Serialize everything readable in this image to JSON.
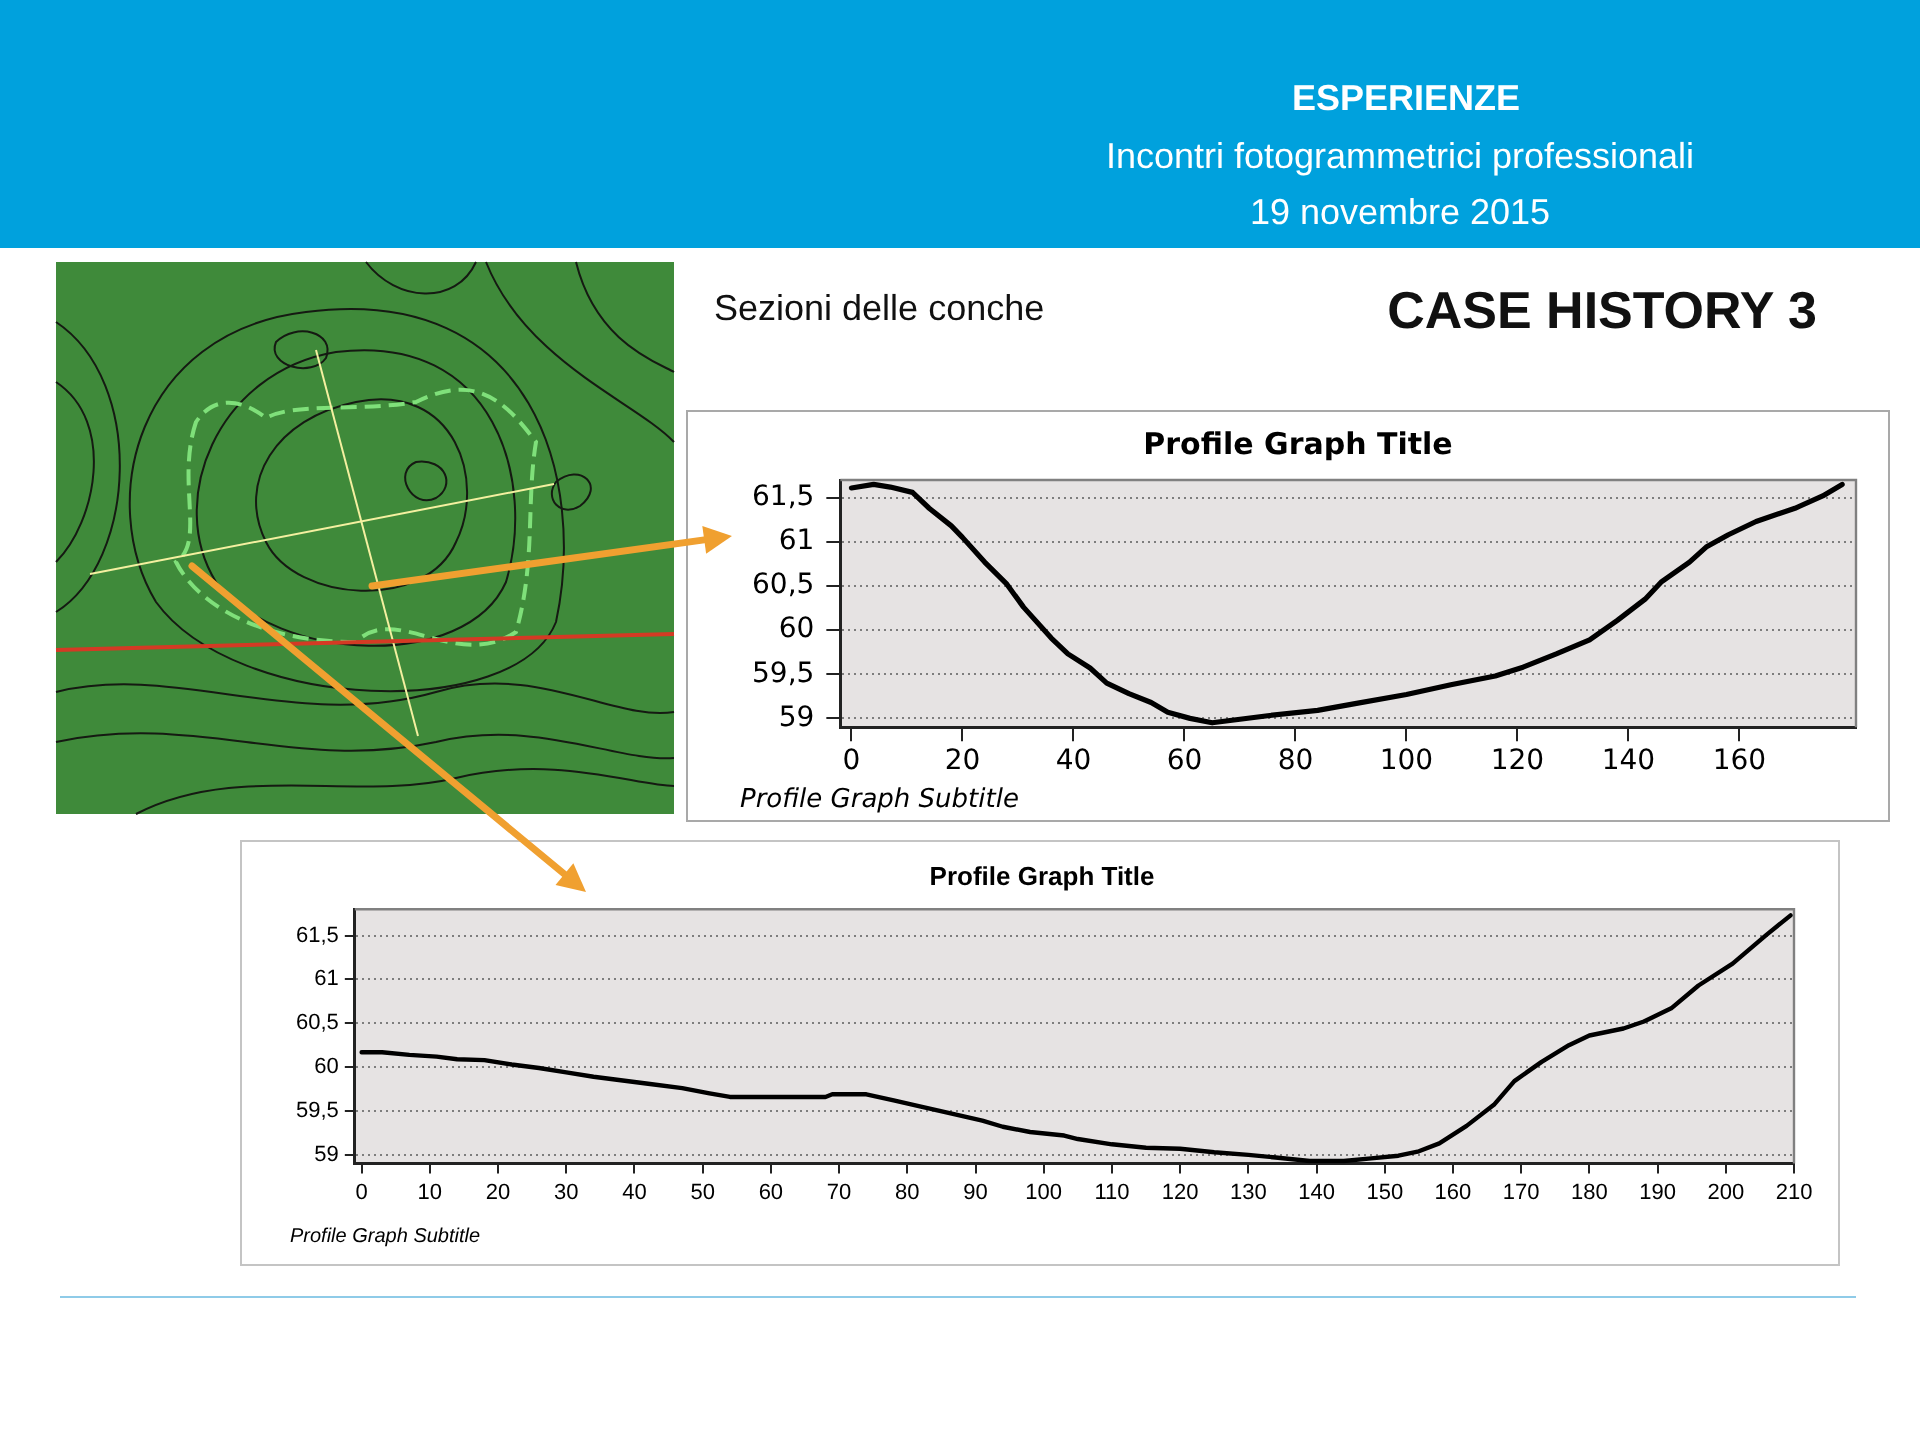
{
  "chart_data": [
    {
      "type": "line",
      "title": "Profile Graph Title",
      "subtitle": "Profile Graph Subtitle",
      "annotations": [
        "ESPERIENZE",
        "Incontri fotogrammetrici professionali",
        "19 novembre 2015",
        "Sezioni delle conche",
        "CASE HISTORY 3"
      ],
      "x": [
        0,
        4,
        7,
        11,
        14,
        18,
        20,
        24,
        28,
        31,
        36,
        39,
        43,
        46,
        50,
        54,
        57,
        61,
        65,
        70,
        75,
        84,
        91,
        100,
        108,
        116,
        121,
        127,
        133,
        138,
        143,
        146,
        151,
        154,
        158,
        163,
        170,
        175,
        178.5
      ],
      "values": [
        61.61,
        61.65,
        61.62,
        61.56,
        61.38,
        61.18,
        61.05,
        60.77,
        60.52,
        60.26,
        59.91,
        59.73,
        59.57,
        59.4,
        59.28,
        59.18,
        59.07,
        59.0,
        58.95,
        58.99,
        59.03,
        59.09,
        59.17,
        59.27,
        59.38,
        59.48,
        59.58,
        59.73,
        59.89,
        60.11,
        60.35,
        60.55,
        60.77,
        60.94,
        61.08,
        61.23,
        61.38,
        61.52,
        61.65
      ],
      "color": "#000000",
      "xlim": [
        -2,
        181
      ],
      "xticks": [
        0,
        20,
        40,
        60,
        80,
        100,
        120,
        140,
        160
      ],
      "ylim": [
        58.9,
        61.7
      ],
      "yticks": [
        59,
        {
          "value": 59.5,
          "label": "59,5"
        },
        60,
        {
          "value": 60.5,
          "label": "60,5"
        },
        61,
        {
          "value": 61.5,
          "label": "61,5"
        }
      ],
      "grid": "y"
    },
    {
      "type": "line",
      "title": "Profile Graph Title",
      "subtitle": "Profile Graph Subtitle",
      "x": [
        0,
        3,
        7,
        11,
        14,
        18,
        22,
        26,
        30,
        34,
        38,
        42,
        47,
        51,
        54,
        60,
        68,
        69,
        74,
        78,
        82,
        87,
        91,
        94,
        98,
        103,
        105,
        110,
        115,
        120,
        125,
        130,
        134,
        139,
        144,
        148,
        152,
        155,
        158,
        162,
        166,
        169,
        173,
        177,
        180,
        185,
        188,
        192,
        196,
        201,
        206,
        209.5
      ],
      "values": [
        60.17,
        60.17,
        60.14,
        60.12,
        60.09,
        60.08,
        60.03,
        59.99,
        59.94,
        59.89,
        59.85,
        59.81,
        59.76,
        59.7,
        59.66,
        59.66,
        59.66,
        59.69,
        59.69,
        59.62,
        59.55,
        59.46,
        59.39,
        59.32,
        59.26,
        59.22,
        59.18,
        59.12,
        59.08,
        59.07,
        59.03,
        59.0,
        58.97,
        58.93,
        58.93,
        58.96,
        58.99,
        59.04,
        59.13,
        59.33,
        59.57,
        59.84,
        60.06,
        60.25,
        60.36,
        60.44,
        60.52,
        60.67,
        60.93,
        61.18,
        61.51,
        61.73
      ],
      "color": "#000000",
      "xlim": [
        -1,
        210
      ],
      "xticks": [
        0,
        10,
        20,
        30,
        40,
        50,
        60,
        70,
        80,
        90,
        100,
        110,
        120,
        130,
        140,
        150,
        160,
        170,
        180,
        190,
        200,
        210
      ],
      "ylim": [
        58.9,
        61.8
      ],
      "yticks": [
        59,
        {
          "value": 59.5,
          "label": "59,5"
        },
        60,
        {
          "value": 60.5,
          "label": "60,5"
        },
        61,
        {
          "value": 61.5,
          "label": "61,5"
        }
      ],
      "grid": "y"
    }
  ]
}
